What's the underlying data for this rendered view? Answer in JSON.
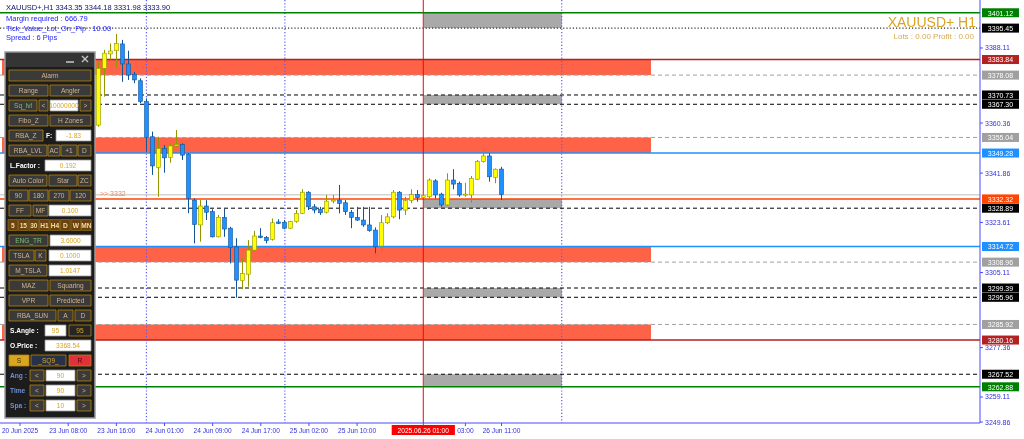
{
  "chart_data": [
    {
      "type": "candlestick",
      "title": "XAUUSD+,H1 3343.35 3344.18 3331.98 3333.90",
      "annotations": [
        "Margin required : 666.79",
        "Tick_Value_Lot_On_Pip : 10.00",
        "Spread : 6 Pips",
        "XAUUSD+ H1",
        "Lots : 0.00 Profit : 0.00",
        {
          "text": ">> 3332",
          "y": 3332.32
        }
      ],
      "categories": [
        null,
        null,
        "20 Jun 2025",
        null,
        null,
        null,
        null,
        null,
        null,
        null,
        "23 Jun 08:00",
        null,
        null,
        null,
        null,
        null,
        null,
        null,
        "23 Jun 16:00",
        null,
        null,
        null,
        null,
        null,
        null,
        null,
        "24 Jun 01:00",
        null,
        null,
        null,
        null,
        null,
        null,
        null,
        "24 Jun 09:00",
        null,
        null,
        null,
        null,
        null,
        null,
        null,
        "24 Jun 17:00",
        null,
        null,
        null,
        null,
        null,
        null,
        null,
        "25 Jun 02:00",
        null,
        null,
        null,
        null,
        null,
        null,
        null,
        "25 Jun 10:00",
        null,
        null,
        null,
        null,
        null,
        null,
        null,
        null,
        null,
        null,
        "2025.06.26 01:00",
        null,
        null,
        null,
        null,
        null,
        null,
        "03:00",
        null,
        null,
        null,
        null,
        null,
        "26 Jun 11:00",
        null,
        null,
        null,
        null,
        null,
        null,
        null,
        null,
        null,
        null,
        null,
        null,
        null,
        null,
        null,
        null,
        null,
        null,
        null,
        null,
        null,
        null,
        null,
        null,
        null,
        null,
        null,
        null,
        null,
        null,
        null,
        null,
        null,
        null,
        null,
        null,
        null,
        null,
        null,
        null,
        null,
        null,
        null,
        null,
        null,
        null,
        null,
        null,
        null,
        null,
        null,
        null,
        null,
        null,
        null,
        null,
        null,
        null,
        null,
        null,
        null,
        null,
        null,
        null,
        null,
        null,
        null,
        null,
        null,
        null,
        null,
        null,
        null,
        null,
        null,
        null,
        null,
        null,
        null
      ],
      "ohlc": [
        null,
        null,
        null,
        null,
        null,
        null,
        null,
        null,
        null,
        null,
        null,
        null,
        null,
        null,
        null,
        [
          3359.6,
          3383.0,
          3359.0,
          3380.6
        ],
        [
          3380.6,
          3387.4,
          3370.1,
          3386.2
        ],
        [
          3385.9,
          3389.8,
          3383.7,
          3387.0
        ],
        [
          3387.1,
          3393.3,
          3380.6,
          3389.8
        ],
        [
          3389.6,
          3391.1,
          3375.6,
          3382.2
        ],
        [
          3382.2,
          3387.1,
          3376.3,
          3378.1
        ],
        [
          3378.4,
          3379.3,
          3375.1,
          3376.3
        ],
        [
          3376.0,
          3376.9,
          3367.7,
          3368.3
        ],
        [
          3368.3,
          3369.5,
          3349.8,
          3355.1
        ],
        [
          3355.3,
          3357.2,
          3341.2,
          3344.5
        ],
        [
          3344.0,
          3355.3,
          3333.1,
          3351.0
        ],
        [
          3351.0,
          3352.2,
          3342.0,
          3347.5
        ],
        [
          3347.7,
          3352.9,
          3345.7,
          3351.9
        ],
        [
          3351.9,
          3357.8,
          3351.6,
          3352.5
        ],
        [
          3352.5,
          3352.9,
          3346.7,
          3348.5
        ],
        [
          3348.9,
          3349.2,
          3327.0,
          3332.5
        ],
        [
          3331.9,
          3332.5,
          3315.9,
          3322.9
        ],
        [
          3322.7,
          3331.9,
          3316.5,
          3329.7
        ],
        [
          3329.7,
          3331.9,
          3324.5,
          3327.4
        ],
        [
          3327.6,
          3328.5,
          3318.1,
          3318.3
        ],
        [
          3318.3,
          3326.4,
          3318.1,
          3325.5
        ],
        [
          3325.5,
          3328.6,
          3318.3,
          3321.2
        ],
        [
          3321.5,
          3322.0,
          3308.5,
          3314.4
        ],
        [
          3314.6,
          3317.8,
          3295.8,
          3302.3
        ],
        [
          3302.1,
          3310.4,
          3298.9,
          3304.8
        ],
        [
          3304.5,
          3317.1,
          3299.9,
          3313.4
        ],
        [
          3313.4,
          3320.5,
          3312.8,
          3318.6
        ],
        [
          3318.6,
          3321.5,
          3317.8,
          3318.0
        ],
        [
          3318.1,
          3318.6,
          3315.9,
          3316.9
        ],
        [
          3317.4,
          3325.1,
          3316.9,
          3323.5
        ],
        [
          3323.8,
          3324.8,
          3323.0,
          3323.3
        ],
        [
          3323.7,
          3324.5,
          3321.1,
          3321.5
        ],
        [
          3321.5,
          3324.2,
          3321.2,
          3323.9
        ],
        [
          3323.9,
          3328.2,
          3323.5,
          3327.0
        ],
        [
          3327.0,
          3335.9,
          3326.7,
          3334.8
        ],
        [
          3334.8,
          3335.2,
          3328.2,
          3329.4
        ],
        [
          3329.4,
          3330.4,
          3327.0,
          3328.2
        ],
        [
          3328.5,
          3329.4,
          3326.4,
          3327.2
        ],
        [
          3327.4,
          3333.8,
          3327.0,
          3331.5
        ],
        [
          3331.5,
          3333.8,
          3330.7,
          3331.9
        ],
        [
          3331.9,
          3337.5,
          3327.0,
          3330.7
        ],
        [
          3330.9,
          3331.9,
          3326.4,
          3327.6
        ],
        [
          3327.4,
          3328.2,
          3321.5,
          3325.5
        ],
        [
          3325.5,
          3329.4,
          3324.2,
          3324.5
        ],
        [
          3324.5,
          3329.4,
          3322.0,
          3322.7
        ],
        [
          3322.7,
          3329.4,
          3320.2,
          3320.6
        ],
        [
          3320.8,
          3321.8,
          3312.2,
          3314.6
        ],
        [
          3314.9,
          3326.4,
          3312.4,
          3323.5
        ],
        [
          3323.5,
          3327.0,
          3323.0,
          3325.7
        ],
        [
          3325.7,
          3335.6,
          3325.1,
          3334.8
        ],
        [
          3334.8,
          3335.2,
          3324.8,
          3328.2
        ],
        [
          3328.2,
          3333.1,
          3326.4,
          3331.7
        ],
        [
          3331.7,
          3335.9,
          3330.7,
          3333.9
        ],
        [
          3333.9,
          3335.6,
          3331.3,
          3332.8
        ],
        [
          3332.8,
          3334.1,
          3332.5,
          3333.5
        ],
        [
          3333.1,
          3339.9,
          3332.5,
          3339.3
        ],
        [
          3339.0,
          3339.6,
          3332.5,
          3333.8
        ],
        [
          3334.1,
          3334.6,
          3329.4,
          3330.1
        ],
        [
          3330.1,
          3341.8,
          3329.7,
          3339.3
        ],
        [
          3339.3,
          3343.3,
          3335.9,
          3337.8
        ],
        [
          3338.1,
          3338.7,
          3333.1,
          3333.8
        ],
        [
          3333.8,
          3338.3,
          3333.1,
          3334.1
        ],
        [
          3333.8,
          3340.8,
          3330.9,
          3339.9
        ],
        [
          3339.6,
          3346.7,
          3339.3,
          3346.1
        ],
        [
          3346.1,
          3350.4,
          3345.7,
          3348.2
        ],
        [
          3348.2,
          3349.2,
          3338.7,
          3340.5
        ],
        [
          3340.3,
          3343.6,
          3338.1,
          3343.3
        ],
        [
          3343.35,
          3344.18,
          3331.98,
          3333.9
        ],
        null,
        null,
        null,
        null,
        null,
        null,
        null,
        null,
        null,
        null,
        null,
        null,
        null,
        null,
        null,
        null,
        null,
        null,
        null,
        null,
        null,
        null,
        null,
        null,
        null,
        null,
        null,
        null,
        null,
        null,
        null,
        null,
        null,
        null,
        null,
        null,
        null,
        null,
        null,
        null,
        null,
        null,
        null,
        null,
        null,
        null,
        null,
        null,
        null,
        null,
        null,
        null,
        null,
        null,
        null,
        null,
        null,
        null,
        null,
        null,
        null,
        null,
        null,
        null,
        null,
        null,
        null,
        null,
        null,
        null,
        null,
        null,
        null,
        null,
        null,
        null,
        null,
        null,
        null
      ],
      "colors": [
        null,
        null,
        null,
        null,
        null,
        null,
        null,
        null,
        null,
        null,
        null,
        null,
        null,
        null,
        null,
        "#ffff00",
        "#ffff00",
        "#ffff00",
        "#ffff00",
        "#1e90ff",
        "#1e90ff",
        "#1e90ff",
        "#1e90ff",
        "#1e90ff",
        "#1e90ff",
        "#ffff00",
        "#1e90ff",
        "#ffff00",
        "#ffff00",
        "#1e90ff",
        "#1e90ff",
        "#1e90ff",
        "#ffff00",
        "#1e90ff",
        "#1e90ff",
        "#ffff00",
        "#1e90ff",
        "#1e90ff",
        "#1e90ff",
        "#ffff00",
        "#ffff00",
        "#ffff00",
        "#1e90ff",
        "#1e90ff",
        "#ffff00",
        "#1e90ff",
        "#1e90ff",
        "#ffff00",
        "#ffff00",
        "#ffff00",
        "#1e90ff",
        "#1e90ff",
        "#1e90ff",
        "#ffff00",
        "#ffff00",
        "#1e90ff",
        "#1e90ff",
        "#1e90ff",
        "#1e90ff",
        "#1e90ff",
        "#1e90ff",
        "#1e90ff",
        "#ffff00",
        "#ffff00",
        "#ffff00",
        "#1e90ff",
        "#ffff00",
        "#ffff00",
        "#1e90ff",
        "#ffff00",
        "#ffff00",
        "#1e90ff",
        "#1e90ff",
        "#ffff00",
        "#1e90ff",
        "#1e90ff",
        "#ffff00",
        "#ffff00",
        "#ffff00",
        "#ffff00",
        "#1e90ff",
        "#ffff00",
        "#1e90ff",
        null,
        null,
        null,
        null,
        null,
        null,
        null,
        null,
        null,
        null,
        null,
        null,
        null,
        null,
        null,
        null,
        null,
        null,
        null,
        null,
        null,
        null,
        null,
        null,
        null,
        null,
        null,
        null,
        null,
        null,
        null,
        null,
        null,
        null,
        null,
        null,
        null,
        null,
        null,
        null,
        null,
        null,
        null,
        null,
        null,
        null,
        null,
        null,
        null,
        null,
        null,
        null,
        null,
        null,
        null,
        null,
        null,
        null,
        null,
        null,
        null,
        null,
        null,
        null,
        null,
        null,
        null,
        null,
        null,
        null,
        null,
        null,
        null,
        null,
        null,
        null,
        null,
        null,
        null
      ],
      "ylim": [
        3249.5,
        3405.1
      ],
      "yticks": [
        3388.11,
        3360.36,
        3341.86,
        3323.61,
        3305.11,
        3277.36,
        3259.11,
        3249.86
      ],
      "bands": [
        {
          "axis": "y",
          "from": 3378.08,
          "to": 3383.84,
          "color": "#ff6347"
        },
        {
          "axis": "y",
          "from": 3349.28,
          "to": 3355.04,
          "color": "#ff6347"
        },
        {
          "axis": "y",
          "from": 3308.96,
          "to": 3314.72,
          "color": "#ff6347"
        },
        {
          "axis": "y",
          "from": 3280.16,
          "to": 3285.92,
          "color": "#ff6347"
        },
        {
          "axis": "y",
          "from": 3395.45,
          "to": 3401.12,
          "color": "#a9a9a9"
        },
        {
          "axis": "y",
          "from": 3367.3,
          "to": 3370.73,
          "color": "#a9a9a9"
        },
        {
          "axis": "y",
          "from": 3328.89,
          "to": 3332.32,
          "color": "#a9a9a9"
        },
        {
          "axis": "y",
          "from": 3295.96,
          "to": 3299.39,
          "color": "#a9a9a9"
        },
        {
          "axis": "y",
          "from": 3262.88,
          "to": 3267.52,
          "color": "#a9a9a9"
        }
      ],
      "ref_lines": [
        {
          "axis": "y",
          "value": 3401.12,
          "label": "3401.12",
          "color": "#008000",
          "line_style": "solid"
        },
        {
          "axis": "y",
          "value": 3395.45,
          "label": "3395.45",
          "color": "#000000",
          "line_style": "dotted"
        },
        {
          "axis": "y",
          "value": 3383.84,
          "label": "3383.84",
          "color": "#b22222",
          "line_style": "solid"
        },
        {
          "axis": "y",
          "value": 3378.08,
          "label": "3378.08",
          "color": "#a0a0a0",
          "line_style": "dashed"
        },
        {
          "axis": "y",
          "value": 3370.73,
          "label": "3370.73",
          "color": "#000000",
          "line_style": "dashed"
        },
        {
          "axis": "y",
          "value": 3367.3,
          "label": "3367.30",
          "color": "#000000",
          "line_style": "dashed"
        },
        {
          "axis": "y",
          "value": 3355.04,
          "label": "3355.04",
          "color": "#a0a0a0",
          "line_style": "dashed"
        },
        {
          "axis": "y",
          "value": 3349.28,
          "label": "3349.28",
          "color": "#1e90ff",
          "line_style": "solid"
        },
        {
          "axis": "y",
          "value": 3333.9,
          "color": "#d3d3d3",
          "line_style": "solid"
        },
        {
          "axis": "y",
          "value": 3332.32,
          "label": "3332.32",
          "color": "#ff4500",
          "line_style": "solid"
        },
        {
          "axis": "y",
          "value": 3328.89,
          "label": "3328.89",
          "color": "#000000",
          "line_style": "dashed"
        },
        {
          "axis": "y",
          "value": 3314.72,
          "label": "3314.72",
          "color": "#1e90ff",
          "line_style": "solid"
        },
        {
          "axis": "y",
          "value": 3308.96,
          "label": "3308.96",
          "color": "#a0a0a0",
          "line_style": "dashed"
        },
        {
          "axis": "y",
          "value": 3299.39,
          "label": "3299.39",
          "color": "#000000",
          "line_style": "dashed"
        },
        {
          "axis": "y",
          "value": 3295.96,
          "label": "3295.96",
          "color": "#000000",
          "line_style": "dashed"
        },
        {
          "axis": "y",
          "value": 3285.92,
          "label": "3285.92",
          "color": "#a0a0a0",
          "line_style": "dashed"
        },
        {
          "axis": "y",
          "value": 3280.16,
          "label": "3280.16",
          "color": "#b22222",
          "line_style": "solid"
        },
        {
          "axis": "y",
          "value": 3267.52,
          "label": "3267.52",
          "color": "#000000",
          "line_style": "dashed"
        },
        {
          "axis": "y",
          "value": 3262.88,
          "label": "3262.88",
          "color": "#008000",
          "line_style": "solid"
        },
        {
          "axis": "x",
          "value": "2025.06.26 01:00",
          "color": "#ff0000",
          "line_style": "solid"
        }
      ]
    },
    {
      "type": "other",
      "annotations": [
        "Alarm",
        "Range",
        "Angler",
        "Sq_lvl",
        "<",
        "10000000",
        ">",
        "Fibo_Z",
        "H Zones",
        "RBA_Z",
        "F:",
        "-1.83",
        "RBA_LVL",
        "AC",
        "+1",
        "D",
        "L.Factor :",
        "0.192",
        "Auto Color",
        "Star",
        "ZC",
        "90",
        "180",
        "270",
        "120",
        "FF",
        "MF",
        "0.100",
        "5",
        "15",
        "30",
        "H1",
        "H4",
        "D",
        "W",
        "MN",
        "ENG_TR",
        "3.6000",
        "TSLA",
        "K",
        "0.1000",
        "M_TSLA",
        "1.0147",
        "MAZ",
        "Squaring",
        "VPR",
        "Predicted",
        "RBA_SUN",
        "A",
        "D",
        "S.Angle :",
        "95",
        "95",
        "O.Price :",
        "3368.54",
        "S",
        "_SQ9_",
        "R",
        "Ang :",
        "<",
        "90",
        ">",
        "Time",
        "<",
        "90",
        ">",
        "Spa :",
        "<",
        "10",
        ">"
      ]
    }
  ]
}
